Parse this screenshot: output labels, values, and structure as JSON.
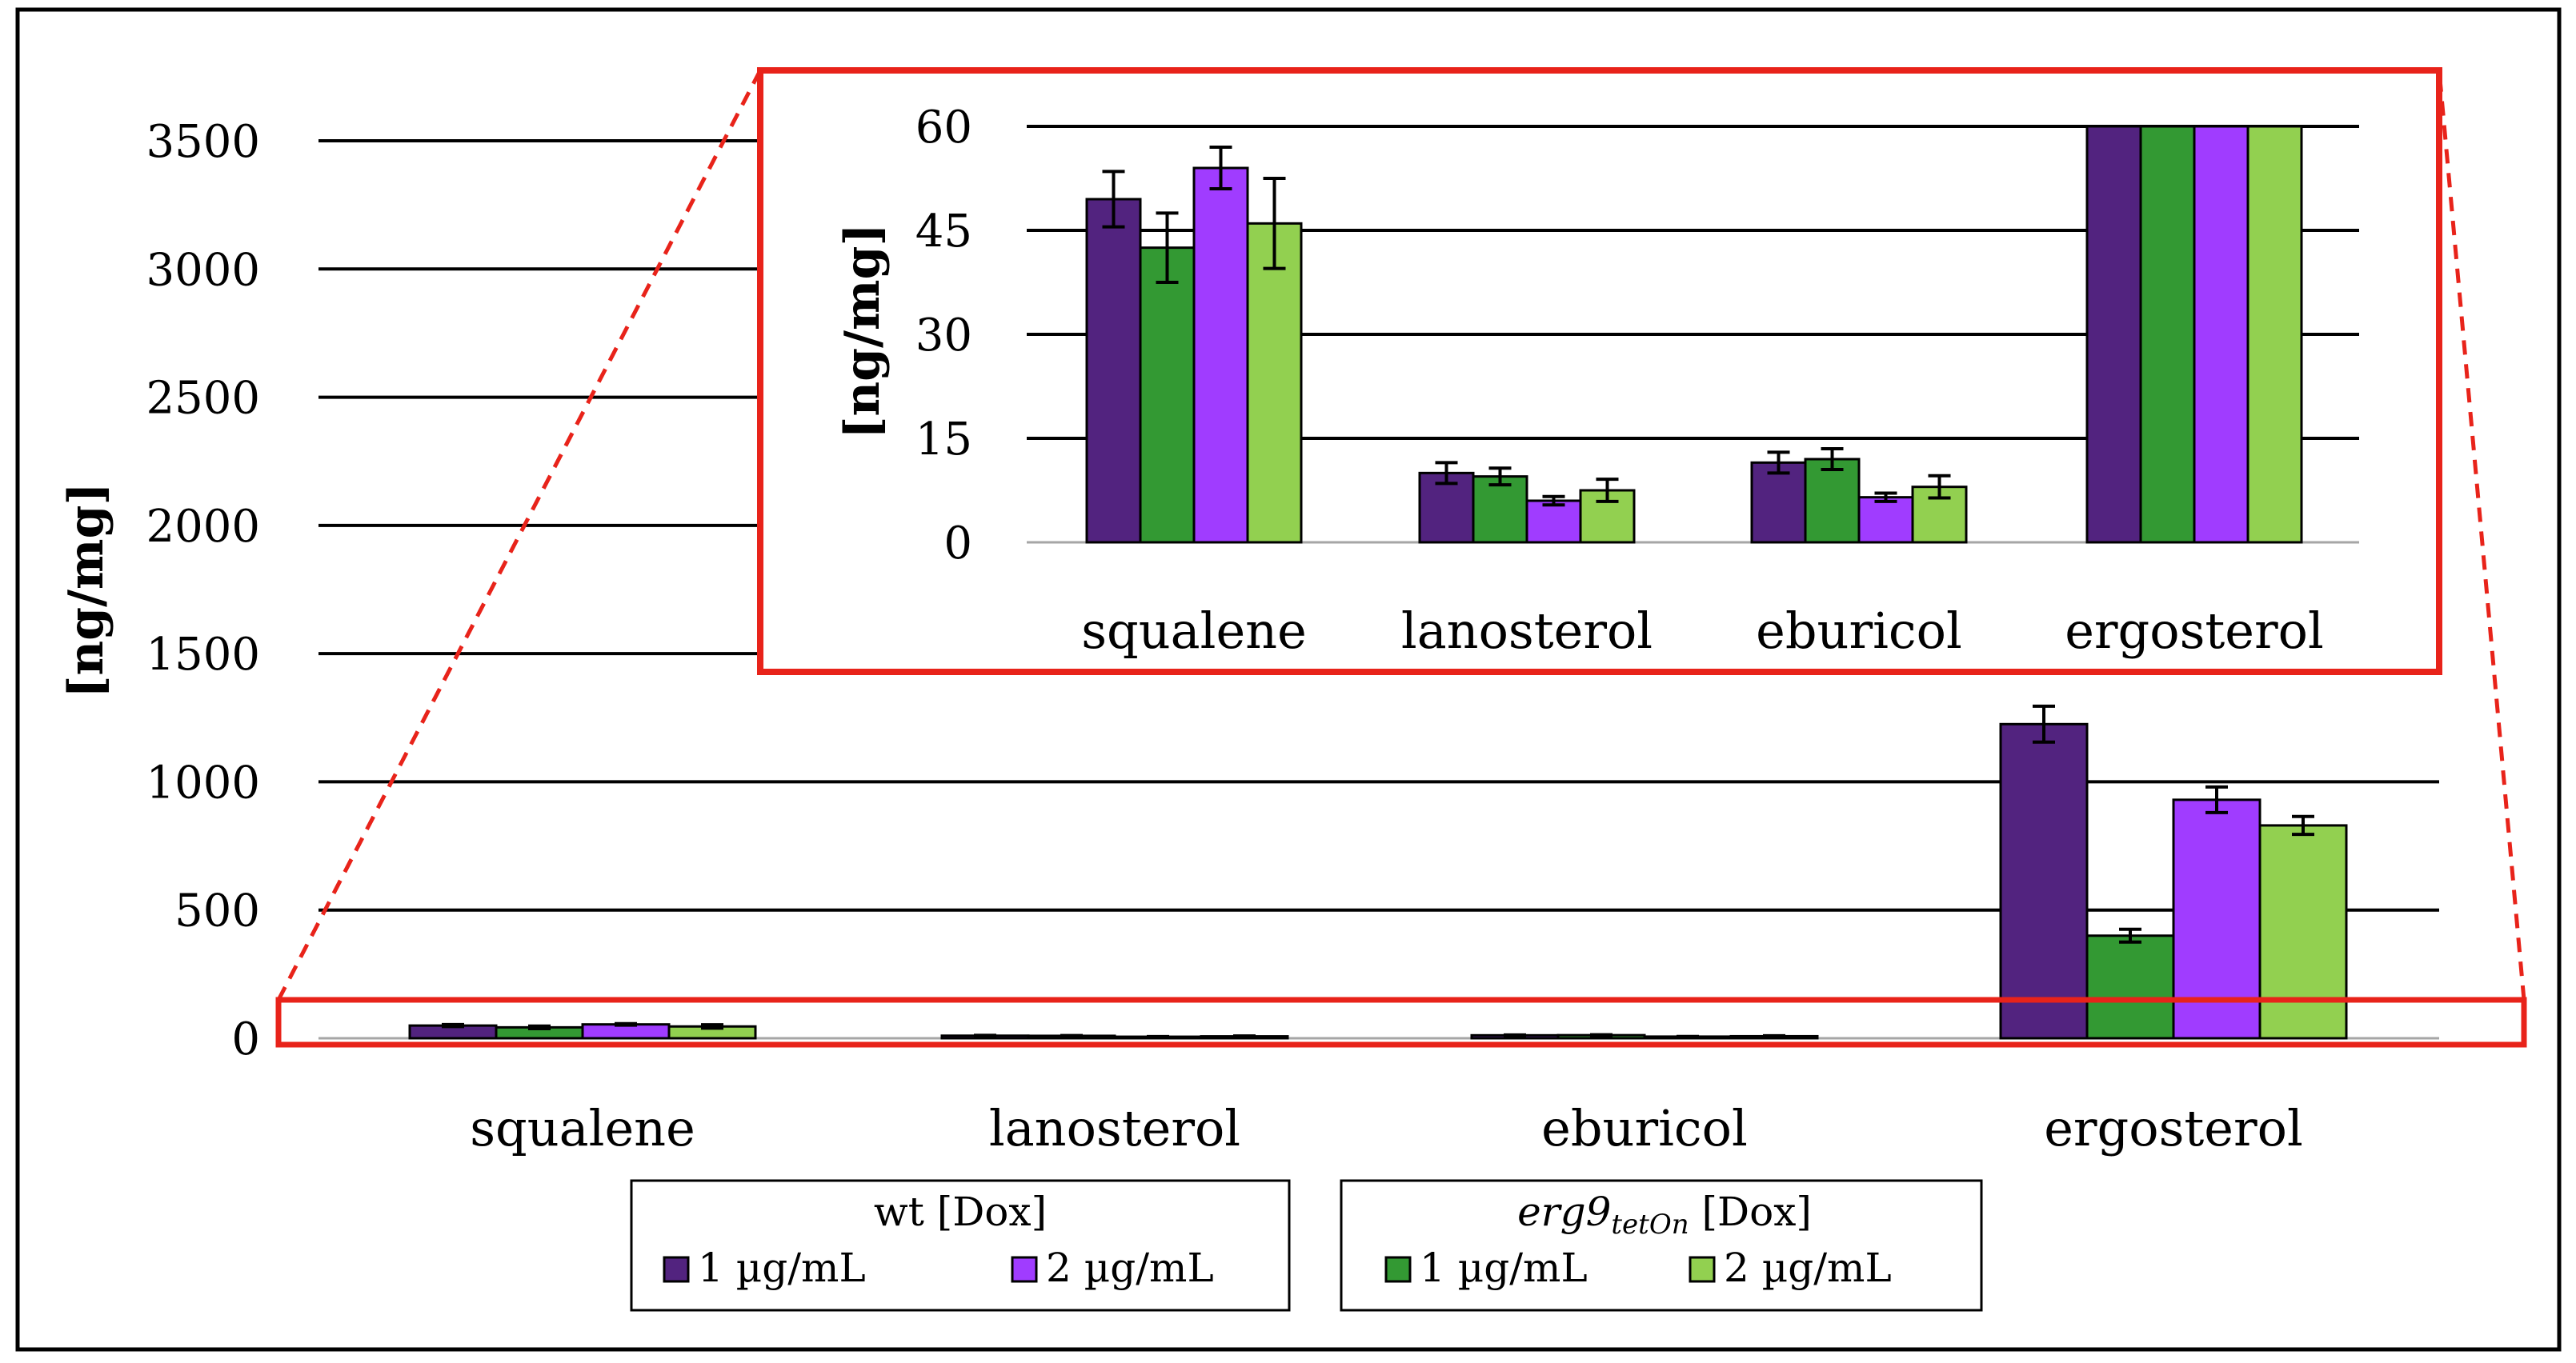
{
  "chart_data": {
    "type": "bar",
    "ylabel": "[ng/mg]",
    "categories": [
      "squalene",
      "lanosterol",
      "eburicol",
      "ergosterol"
    ],
    "ylim": [
      0,
      3500
    ],
    "yticks": [
      0,
      500,
      1000,
      1500,
      2000,
      2500,
      3000,
      3500
    ],
    "yticks_labels": [
      "0",
      "500",
      "1000",
      "1500",
      "2000",
      "2500",
      "3000",
      "3500"
    ],
    "series": [
      {
        "name": "wt 1 µg/mL",
        "color": "#52237f",
        "values": [
          49.5,
          10,
          11.5,
          1225
        ],
        "errors": [
          4,
          1.5,
          1.5,
          70
        ]
      },
      {
        "name": "erg9tetOn 1 µg/mL",
        "color": "#339933",
        "values": [
          42.5,
          9.5,
          12,
          400
        ],
        "errors": [
          5,
          1.2,
          1.5,
          25
        ]
      },
      {
        "name": "wt 2 µg/mL",
        "color": "#a03cff",
        "values": [
          54,
          6,
          6.5,
          930
        ],
        "errors": [
          3,
          0.6,
          0.6,
          50
        ]
      },
      {
        "name": "erg9tetOn 2 µg/mL",
        "color": "#92d050",
        "values": [
          46,
          7.5,
          8,
          830
        ],
        "errors": [
          6.5,
          1.6,
          1.6,
          35
        ]
      }
    ],
    "inset": {
      "ylabel": "[ng/mg]",
      "ylim": [
        0,
        60
      ],
      "yticks": [
        0,
        15,
        30,
        45,
        60
      ],
      "yticks_labels": [
        "0",
        "15",
        "30",
        "45",
        "60"
      ]
    },
    "legend": {
      "wt_title": "wt [Dox]",
      "erg_title_italic": "erg9",
      "erg_title_sub": "tetOn",
      "erg_title_rest": " [Dox]",
      "label_1": "1 µg/mL",
      "label_2": "2 µg/mL"
    }
  }
}
